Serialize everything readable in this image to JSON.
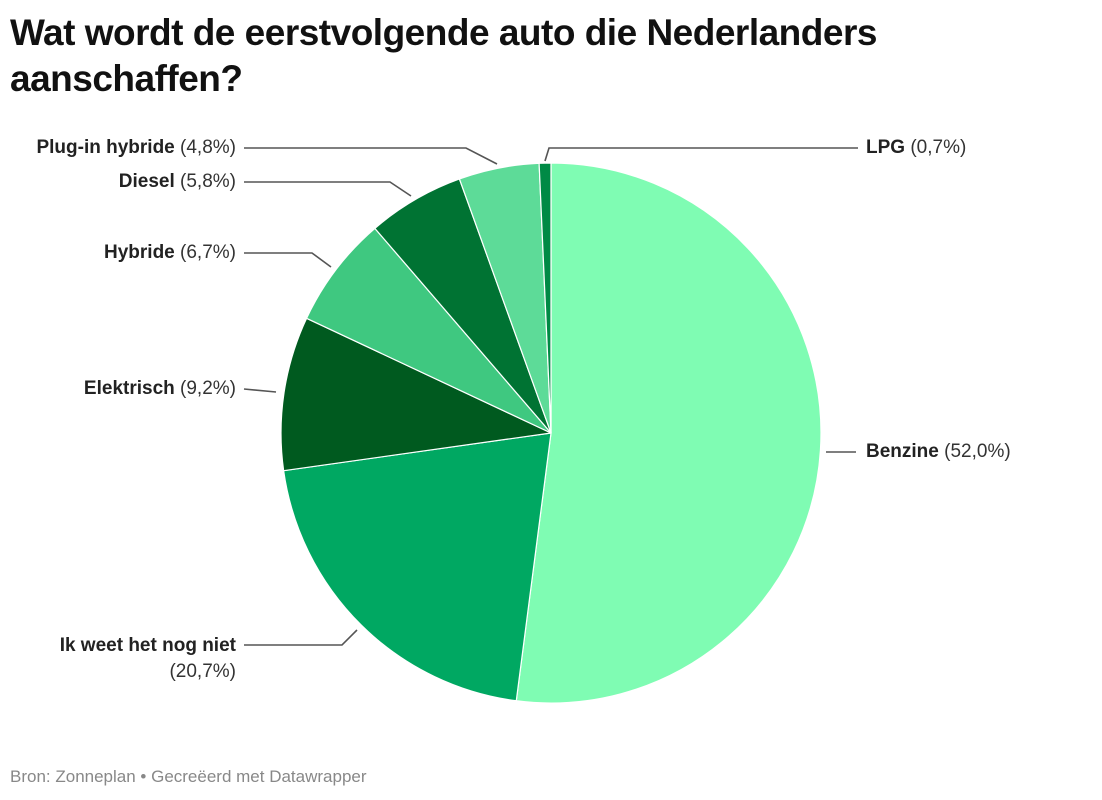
{
  "title": "Wat wordt de eerstvolgende auto die Nederlanders aanschaffen?",
  "footer": {
    "source_label": "Bron:",
    "source": "Zonneplan",
    "separator": "•",
    "credit": "Gecreëerd met Datawrapper",
    "full": "Bron: Zonneplan • Gecreëerd met Datawrapper"
  },
  "chart_data": {
    "type": "pie",
    "title": "Wat wordt de eerstvolgende auto die Nederlanders aanschaffen?",
    "unit": "%",
    "categories": [
      "Benzine",
      "Ik weet het nog niet",
      "Elektrisch",
      "Hybride",
      "Diesel",
      "Plug-in hybride",
      "LPG"
    ],
    "values": [
      52.0,
      20.7,
      9.2,
      6.7,
      5.8,
      4.8,
      0.7
    ],
    "value_labels": [
      "(52,0%)",
      "(20,7%)",
      "(9,2%)",
      "(6,7%)",
      "(5,8%)",
      "(4,8%)",
      "(0,7%)"
    ],
    "colors": [
      "#7ffcb3",
      "#00a862",
      "#005a1f",
      "#3fc880",
      "#007333",
      "#5ddb98",
      "#008a45"
    ],
    "start_angle_deg": 0,
    "direction": "clockwise",
    "legend": "none (direct labels with leader lines)",
    "source": "Zonneplan"
  },
  "labels": [
    {
      "name": "Benzine",
      "pct": "(52,0%)"
    },
    {
      "name": "Ik weet het nog niet",
      "pct": "(20,7%)"
    },
    {
      "name": "Elektrisch",
      "pct": "(9,2%)"
    },
    {
      "name": "Hybride",
      "pct": "(6,7%)"
    },
    {
      "name": "Diesel",
      "pct": "(5,8%)"
    },
    {
      "name": "Plug-in hybride",
      "pct": "(4,8%)"
    },
    {
      "name": "LPG",
      "pct": "(0,7%)"
    }
  ]
}
